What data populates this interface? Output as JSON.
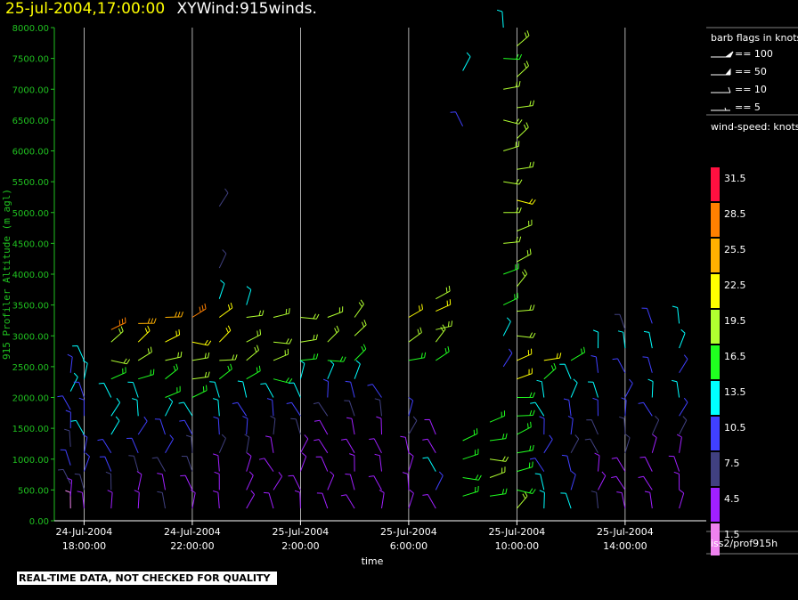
{
  "header": {
    "datetime": "25-jul-2004,17:00:00",
    "title": "XYWind:915winds."
  },
  "footer": {
    "disclaimer": "REAL-TIME DATA, NOT CHECKED FOR QUALITY",
    "source": "iss2/prof915h"
  },
  "legend": {
    "barb_title": "barb flags in knots",
    "barb_items": [
      "== 100",
      "== 50",
      "== 10",
      "== 5"
    ],
    "speed_title": "wind-speed: knots",
    "speed_levels": [
      {
        "label": "31.5",
        "color": "#ff1040"
      },
      {
        "label": "28.5",
        "color": "#ff8000"
      },
      {
        "label": "25.5",
        "color": "#ffb000"
      },
      {
        "label": "22.5",
        "color": "#ffff00"
      },
      {
        "label": "19.5",
        "color": "#b0ff30"
      },
      {
        "label": "16.5",
        "color": "#20ff20"
      },
      {
        "label": "13.5",
        "color": "#00ffff"
      },
      {
        "label": "10.5",
        "color": "#4040ff"
      },
      {
        "label": "7.5",
        "color": "#404080"
      },
      {
        "label": "4.5",
        "color": "#a020ff"
      },
      {
        "label": "1.5",
        "color": "#ee82ee"
      }
    ]
  },
  "chart_data": {
    "type": "scatter",
    "xlabel": "time",
    "ylabel": "915 Profiler Altitude (m agl)",
    "ylim": [
      0,
      8000
    ],
    "y_ticks": [
      "0.00",
      "500.00",
      "1000.00",
      "1500.00",
      "2000.00",
      "2500.00",
      "3000.00",
      "3500.00",
      "4000.00",
      "4500.00",
      "5000.00",
      "5500.00",
      "6000.00",
      "6500.00",
      "7000.00",
      "7500.00",
      "8000.00"
    ],
    "x_ticks": [
      {
        "date": "24-Jul-2004",
        "time": "18:00:00"
      },
      {
        "date": "24-Jul-2004",
        "time": "22:00:00"
      },
      {
        "date": "25-Jul-2004",
        "time": "2:00:00"
      },
      {
        "date": "25-Jul-2004",
        "time": "6:00:00"
      },
      {
        "date": "25-Jul-2004",
        "time": "10:00:00"
      },
      {
        "date": "25-Jul-2004",
        "time": "14:00:00"
      }
    ],
    "xlim_hours": [
      16.9,
      41.0
    ],
    "grid": "vertical at tick times",
    "axis_color": "#20c020",
    "wind_barbs": [
      {
        "time_h": 17.5,
        "levels": [
          [
            200,
            1.5
          ],
          [
            400,
            4.5
          ],
          [
            600,
            7.5
          ],
          [
            900,
            10.5
          ],
          [
            1200,
            7.5
          ],
          [
            1500,
            10.5
          ],
          [
            1800,
            10.5
          ],
          [
            2100,
            13.5
          ],
          [
            2400,
            10.5
          ]
        ]
      },
      {
        "time_h": 18.0,
        "levels": [
          [
            200,
            4.5
          ],
          [
            500,
            7.5
          ],
          [
            800,
            10.5
          ],
          [
            1100,
            10.5
          ],
          [
            1400,
            13.5
          ],
          [
            1700,
            10.5
          ],
          [
            2000,
            10.5
          ],
          [
            2300,
            13.5
          ],
          [
            2600,
            13.5
          ]
        ]
      },
      {
        "time_h": 19.0,
        "levels": [
          [
            200,
            4.5
          ],
          [
            500,
            7.5
          ],
          [
            800,
            10.5
          ],
          [
            1100,
            10.5
          ],
          [
            1400,
            13.5
          ],
          [
            1700,
            13.5
          ],
          [
            2000,
            13.5
          ],
          [
            2300,
            16.5
          ],
          [
            2600,
            19.5
          ],
          [
            2900,
            19.5
          ],
          [
            3100,
            28.5
          ]
        ]
      },
      {
        "time_h": 20.0,
        "levels": [
          [
            200,
            4.5
          ],
          [
            500,
            4.5
          ],
          [
            800,
            7.5
          ],
          [
            1100,
            10.5
          ],
          [
            1400,
            10.5
          ],
          [
            1700,
            13.5
          ],
          [
            2000,
            13.5
          ],
          [
            2300,
            16.5
          ],
          [
            2600,
            19.5
          ],
          [
            2900,
            22.5
          ],
          [
            3200,
            25.5
          ]
        ]
      },
      {
        "time_h": 21.0,
        "levels": [
          [
            200,
            7.5
          ],
          [
            500,
            4.5
          ],
          [
            800,
            7.5
          ],
          [
            1100,
            10.5
          ],
          [
            1400,
            10.5
          ],
          [
            1700,
            13.5
          ],
          [
            2000,
            16.5
          ],
          [
            2300,
            16.5
          ],
          [
            2600,
            19.5
          ],
          [
            2900,
            22.5
          ],
          [
            3300,
            25.5
          ]
        ]
      },
      {
        "time_h": 22.0,
        "levels": [
          [
            200,
            4.5
          ],
          [
            500,
            4.5
          ],
          [
            800,
            7.5
          ],
          [
            1100,
            7.5
          ],
          [
            1400,
            10.5
          ],
          [
            1700,
            13.5
          ],
          [
            2000,
            16.5
          ],
          [
            2300,
            19.5
          ],
          [
            2600,
            19.5
          ],
          [
            2900,
            22.5
          ],
          [
            3300,
            28.5
          ]
        ]
      },
      {
        "time_h": 23.0,
        "levels": [
          [
            200,
            4.5
          ],
          [
            500,
            4.5
          ],
          [
            800,
            4.5
          ],
          [
            1100,
            7.5
          ],
          [
            1400,
            10.5
          ],
          [
            1700,
            13.5
          ],
          [
            2000,
            13.5
          ],
          [
            2300,
            16.5
          ],
          [
            2600,
            19.5
          ],
          [
            2900,
            22.5
          ],
          [
            3300,
            22.5
          ],
          [
            3600,
            13.5
          ],
          [
            4100,
            7.5
          ],
          [
            5100,
            7.5
          ]
        ]
      },
      {
        "time_h": 24.0,
        "levels": [
          [
            200,
            4.5
          ],
          [
            500,
            4.5
          ],
          [
            800,
            4.5
          ],
          [
            1100,
            7.5
          ],
          [
            1400,
            10.5
          ],
          [
            1700,
            10.5
          ],
          [
            2000,
            13.5
          ],
          [
            2300,
            16.5
          ],
          [
            2600,
            19.5
          ],
          [
            2900,
            19.5
          ],
          [
            3300,
            19.5
          ],
          [
            3500,
            13.5
          ]
        ]
      },
      {
        "time_h": 25.0,
        "levels": [
          [
            200,
            4.5
          ],
          [
            500,
            4.5
          ],
          [
            800,
            4.5
          ],
          [
            1100,
            4.5
          ],
          [
            1400,
            7.5
          ],
          [
            1700,
            10.5
          ],
          [
            2000,
            13.5
          ],
          [
            2300,
            16.5
          ],
          [
            2600,
            19.5
          ],
          [
            2900,
            19.5
          ],
          [
            3300,
            19.5
          ]
        ]
      },
      {
        "time_h": 26.0,
        "levels": [
          [
            200,
            4.5
          ],
          [
            500,
            4.5
          ],
          [
            800,
            4.5
          ],
          [
            1100,
            4.5
          ],
          [
            1400,
            7.5
          ],
          [
            1700,
            10.5
          ],
          [
            2000,
            13.5
          ],
          [
            2300,
            13.5
          ],
          [
            2600,
            16.5
          ],
          [
            2900,
            19.5
          ],
          [
            3300,
            19.5
          ]
        ]
      },
      {
        "time_h": 27.0,
        "levels": [
          [
            200,
            4.5
          ],
          [
            500,
            4.5
          ],
          [
            800,
            4.5
          ],
          [
            1100,
            4.5
          ],
          [
            1400,
            4.5
          ],
          [
            1700,
            7.5
          ],
          [
            2000,
            10.5
          ],
          [
            2300,
            13.5
          ],
          [
            2600,
            16.5
          ],
          [
            2900,
            19.5
          ],
          [
            3300,
            19.5
          ]
        ]
      },
      {
        "time_h": 28.0,
        "levels": [
          [
            200,
            4.5
          ],
          [
            500,
            4.5
          ],
          [
            800,
            4.5
          ],
          [
            1100,
            4.5
          ],
          [
            1400,
            4.5
          ],
          [
            1700,
            7.5
          ],
          [
            2000,
            10.5
          ],
          [
            2300,
            13.5
          ],
          [
            2600,
            16.5
          ],
          [
            3000,
            19.5
          ],
          [
            3300,
            19.5
          ]
        ]
      },
      {
        "time_h": 29.0,
        "levels": [
          [
            200,
            4.5
          ],
          [
            500,
            4.5
          ],
          [
            800,
            4.5
          ],
          [
            1100,
            4.5
          ],
          [
            1400,
            4.5
          ],
          [
            1700,
            7.5
          ],
          [
            2000,
            10.5
          ]
        ]
      },
      {
        "time_h": 30.0,
        "levels": [
          [
            200,
            4.5
          ],
          [
            500,
            4.5
          ],
          [
            800,
            4.5
          ],
          [
            1100,
            4.5
          ],
          [
            1400,
            7.5
          ],
          [
            1700,
            10.5
          ],
          [
            2600,
            16.5
          ],
          [
            2900,
            19.5
          ],
          [
            3300,
            22.5
          ]
        ]
      },
      {
        "time_h": 31.0,
        "levels": [
          [
            200,
            4.5
          ],
          [
            500,
            10.5
          ],
          [
            800,
            13.5
          ],
          [
            1100,
            4.5
          ],
          [
            1400,
            4.5
          ],
          [
            2600,
            16.5
          ],
          [
            2900,
            19.5
          ],
          [
            3100,
            19.5
          ],
          [
            3400,
            22.5
          ],
          [
            3600,
            19.5
          ]
        ]
      },
      {
        "time_h": 32.0,
        "levels": [
          [
            400,
            16.5
          ],
          [
            700,
            16.5
          ],
          [
            1000,
            16.5
          ],
          [
            1300,
            16.5
          ],
          [
            6400,
            10.5
          ],
          [
            7300,
            13.5
          ]
        ]
      },
      {
        "time_h": 33.0,
        "levels": [
          [
            400,
            16.5
          ],
          [
            700,
            19.5
          ],
          [
            1000,
            19.5
          ],
          [
            1300,
            16.5
          ],
          [
            1600,
            16.5
          ]
        ]
      },
      {
        "time_h": 33.5,
        "levels": [
          [
            2500,
            10.5
          ],
          [
            3000,
            13.5
          ],
          [
            3500,
            16.5
          ],
          [
            4000,
            16.5
          ],
          [
            4500,
            19.5
          ],
          [
            5000,
            19.5
          ],
          [
            5500,
            19.5
          ],
          [
            6000,
            19.5
          ],
          [
            6500,
            19.5
          ],
          [
            7000,
            19.5
          ],
          [
            7500,
            16.5
          ],
          [
            8000,
            13.5
          ]
        ]
      },
      {
        "time_h": 34.0,
        "levels": [
          [
            200,
            19.5
          ],
          [
            500,
            16.5
          ],
          [
            800,
            16.5
          ],
          [
            1100,
            16.5
          ],
          [
            1400,
            16.5
          ],
          [
            1700,
            16.5
          ],
          [
            2000,
            16.5
          ],
          [
            2300,
            22.5
          ],
          [
            2600,
            22.5
          ],
          [
            3000,
            19.5
          ],
          [
            3400,
            19.5
          ],
          [
            3800,
            19.5
          ],
          [
            4200,
            19.5
          ],
          [
            4700,
            19.5
          ],
          [
            5200,
            22.5
          ],
          [
            5700,
            19.5
          ],
          [
            6200,
            19.5
          ],
          [
            6700,
            19.5
          ],
          [
            7200,
            19.5
          ],
          [
            7700,
            19.5
          ]
        ]
      },
      {
        "time_h": 35.0,
        "levels": [
          [
            200,
            13.5
          ],
          [
            500,
            13.5
          ],
          [
            800,
            10.5
          ],
          [
            1100,
            10.5
          ],
          [
            1400,
            10.5
          ],
          [
            1700,
            13.5
          ],
          [
            2000,
            13.5
          ],
          [
            2300,
            16.5
          ],
          [
            2600,
            22.5
          ]
        ]
      },
      {
        "time_h": 36.0,
        "levels": [
          [
            200,
            13.5
          ],
          [
            500,
            10.5
          ],
          [
            800,
            10.5
          ],
          [
            1100,
            7.5
          ],
          [
            1400,
            10.5
          ],
          [
            1700,
            10.5
          ],
          [
            2000,
            13.5
          ],
          [
            2300,
            13.5
          ],
          [
            2600,
            16.5
          ]
        ]
      },
      {
        "time_h": 37.0,
        "levels": [
          [
            200,
            7.5
          ],
          [
            500,
            4.5
          ],
          [
            800,
            4.5
          ],
          [
            1100,
            7.5
          ],
          [
            1400,
            7.5
          ],
          [
            1700,
            10.5
          ],
          [
            2000,
            13.5
          ],
          [
            2400,
            10.5
          ],
          [
            2800,
            13.5
          ]
        ]
      },
      {
        "time_h": 38.0,
        "levels": [
          [
            200,
            4.5
          ],
          [
            500,
            4.5
          ],
          [
            800,
            4.5
          ],
          [
            1100,
            7.5
          ],
          [
            1400,
            7.5
          ],
          [
            1700,
            10.5
          ],
          [
            2000,
            10.5
          ],
          [
            2400,
            10.5
          ],
          [
            2800,
            13.5
          ],
          [
            3100,
            7.5
          ]
        ]
      },
      {
        "time_h": 39.0,
        "levels": [
          [
            200,
            4.5
          ],
          [
            500,
            4.5
          ],
          [
            800,
            4.5
          ],
          [
            1100,
            4.5
          ],
          [
            1400,
            7.5
          ],
          [
            1700,
            10.5
          ],
          [
            2000,
            13.5
          ],
          [
            2400,
            10.5
          ],
          [
            2800,
            13.5
          ],
          [
            3200,
            10.5
          ]
        ]
      },
      {
        "time_h": 40.0,
        "levels": [
          [
            200,
            4.5
          ],
          [
            500,
            4.5
          ],
          [
            800,
            4.5
          ],
          [
            1100,
            4.5
          ],
          [
            1400,
            7.5
          ],
          [
            1700,
            10.5
          ],
          [
            2000,
            13.5
          ],
          [
            2400,
            10.5
          ],
          [
            2800,
            13.5
          ],
          [
            3200,
            13.5
          ]
        ]
      }
    ]
  }
}
